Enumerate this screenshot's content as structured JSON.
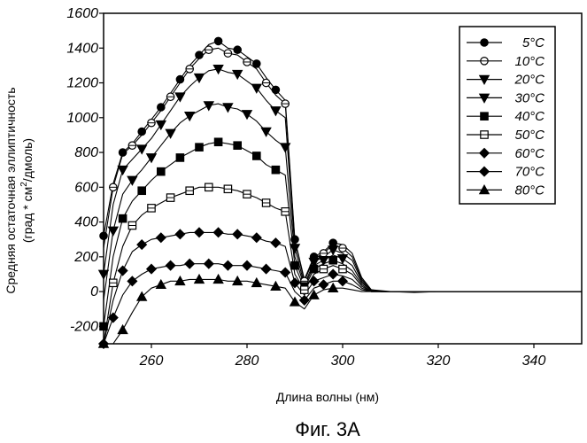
{
  "chart_data": {
    "type": "line",
    "caption": "Фиг. 3A",
    "xlabel": "Длина волны (нм)",
    "ylabel_line1": "Средняя остаточная эллиптичность",
    "ylabel_line2_pre": "(град * см",
    "ylabel_line2_sup": "2",
    "ylabel_line2_post": "/дмоль)",
    "xlim": [
      250,
      350
    ],
    "ylim": [
      -300,
      1600
    ],
    "x_ticks": [
      260,
      280,
      300,
      320,
      340
    ],
    "y_ticks": [
      -200,
      0,
      200,
      400,
      600,
      800,
      1000,
      1200,
      1400,
      1600
    ],
    "grid": false,
    "legend_position": "top-right",
    "x": [
      250,
      252,
      254,
      256,
      258,
      260,
      262,
      264,
      266,
      268,
      270,
      272,
      274,
      276,
      278,
      280,
      282,
      284,
      286,
      288,
      290,
      292,
      294,
      296,
      298,
      300,
      302,
      304,
      306,
      308,
      310,
      315,
      320,
      325,
      330,
      335,
      340,
      345,
      350
    ],
    "series": [
      {
        "name": "5°C",
        "marker": "circle",
        "values": [
          320,
          620,
          800,
          850,
          920,
          990,
          1060,
          1140,
          1220,
          1300,
          1360,
          1420,
          1440,
          1400,
          1390,
          1350,
          1310,
          1230,
          1160,
          1100,
          300,
          70,
          200,
          230,
          280,
          270,
          220,
          80,
          10,
          5,
          0,
          -5,
          0,
          0,
          0,
          0,
          0,
          0,
          0
        ]
      },
      {
        "name": "10°C",
        "marker": "circle-open",
        "values": [
          250,
          600,
          790,
          840,
          900,
          970,
          1040,
          1120,
          1200,
          1280,
          1340,
          1390,
          1400,
          1370,
          1360,
          1320,
          1280,
          1200,
          1130,
          1080,
          290,
          60,
          190,
          220,
          270,
          250,
          200,
          70,
          10,
          0,
          0,
          0,
          0,
          0,
          0,
          0,
          0,
          0,
          0
        ]
      },
      {
        "name": "20°C",
        "marker": "triangle-down",
        "values": [
          100,
          500,
          700,
          760,
          820,
          880,
          960,
          1040,
          1120,
          1180,
          1230,
          1270,
          1280,
          1260,
          1250,
          1210,
          1170,
          1100,
          1040,
          1000,
          250,
          40,
          170,
          200,
          240,
          220,
          180,
          60,
          5,
          0,
          0,
          0,
          0,
          0,
          0,
          0,
          0,
          0,
          0
        ]
      },
      {
        "name": "30°C",
        "marker": "triangle-down",
        "values": [
          -50,
          350,
          560,
          640,
          700,
          770,
          840,
          910,
          970,
          1010,
          1040,
          1070,
          1080,
          1060,
          1050,
          1020,
          980,
          920,
          870,
          830,
          200,
          30,
          150,
          180,
          210,
          190,
          150,
          50,
          5,
          0,
          0,
          0,
          0,
          0,
          0,
          0,
          0,
          0,
          0
        ]
      },
      {
        "name": "40°C",
        "marker": "square",
        "values": [
          -200,
          200,
          420,
          520,
          580,
          640,
          690,
          730,
          770,
          800,
          830,
          850,
          860,
          850,
          840,
          810,
          780,
          730,
          700,
          670,
          150,
          20,
          130,
          160,
          180,
          160,
          120,
          40,
          0,
          0,
          0,
          0,
          0,
          0,
          0,
          0,
          0,
          0,
          0
        ]
      },
      {
        "name": "50°C",
        "marker": "square-open",
        "values": [
          -300,
          50,
          260,
          380,
          440,
          480,
          510,
          540,
          560,
          580,
          600,
          600,
          600,
          590,
          580,
          560,
          540,
          510,
          480,
          460,
          100,
          10,
          100,
          130,
          150,
          130,
          100,
          30,
          0,
          0,
          0,
          0,
          0,
          0,
          0,
          0,
          0,
          0,
          0
        ]
      },
      {
        "name": "60°C",
        "marker": "diamond",
        "values": [
          -300,
          -50,
          120,
          230,
          270,
          300,
          310,
          320,
          330,
          340,
          340,
          340,
          340,
          330,
          330,
          320,
          310,
          290,
          280,
          260,
          50,
          -20,
          60,
          80,
          100,
          90,
          70,
          20,
          0,
          0,
          0,
          0,
          0,
          0,
          0,
          0,
          0,
          0,
          0
        ]
      },
      {
        "name": "70°C",
        "marker": "diamond",
        "values": [
          -300,
          -150,
          -20,
          60,
          100,
          130,
          140,
          150,
          150,
          160,
          160,
          160,
          160,
          150,
          150,
          150,
          140,
          130,
          120,
          110,
          0,
          -50,
          20,
          40,
          60,
          60,
          40,
          10,
          0,
          0,
          0,
          0,
          0,
          0,
          0,
          0,
          0,
          0,
          0
        ]
      },
      {
        "name": "80°C",
        "marker": "triangle-up",
        "values": [
          -300,
          -300,
          -220,
          -120,
          -30,
          20,
          40,
          60,
          60,
          70,
          70,
          70,
          70,
          60,
          60,
          60,
          50,
          40,
          30,
          20,
          -60,
          -100,
          -20,
          10,
          20,
          20,
          10,
          0,
          0,
          0,
          0,
          0,
          0,
          0,
          0,
          0,
          0,
          0,
          0
        ]
      }
    ]
  }
}
